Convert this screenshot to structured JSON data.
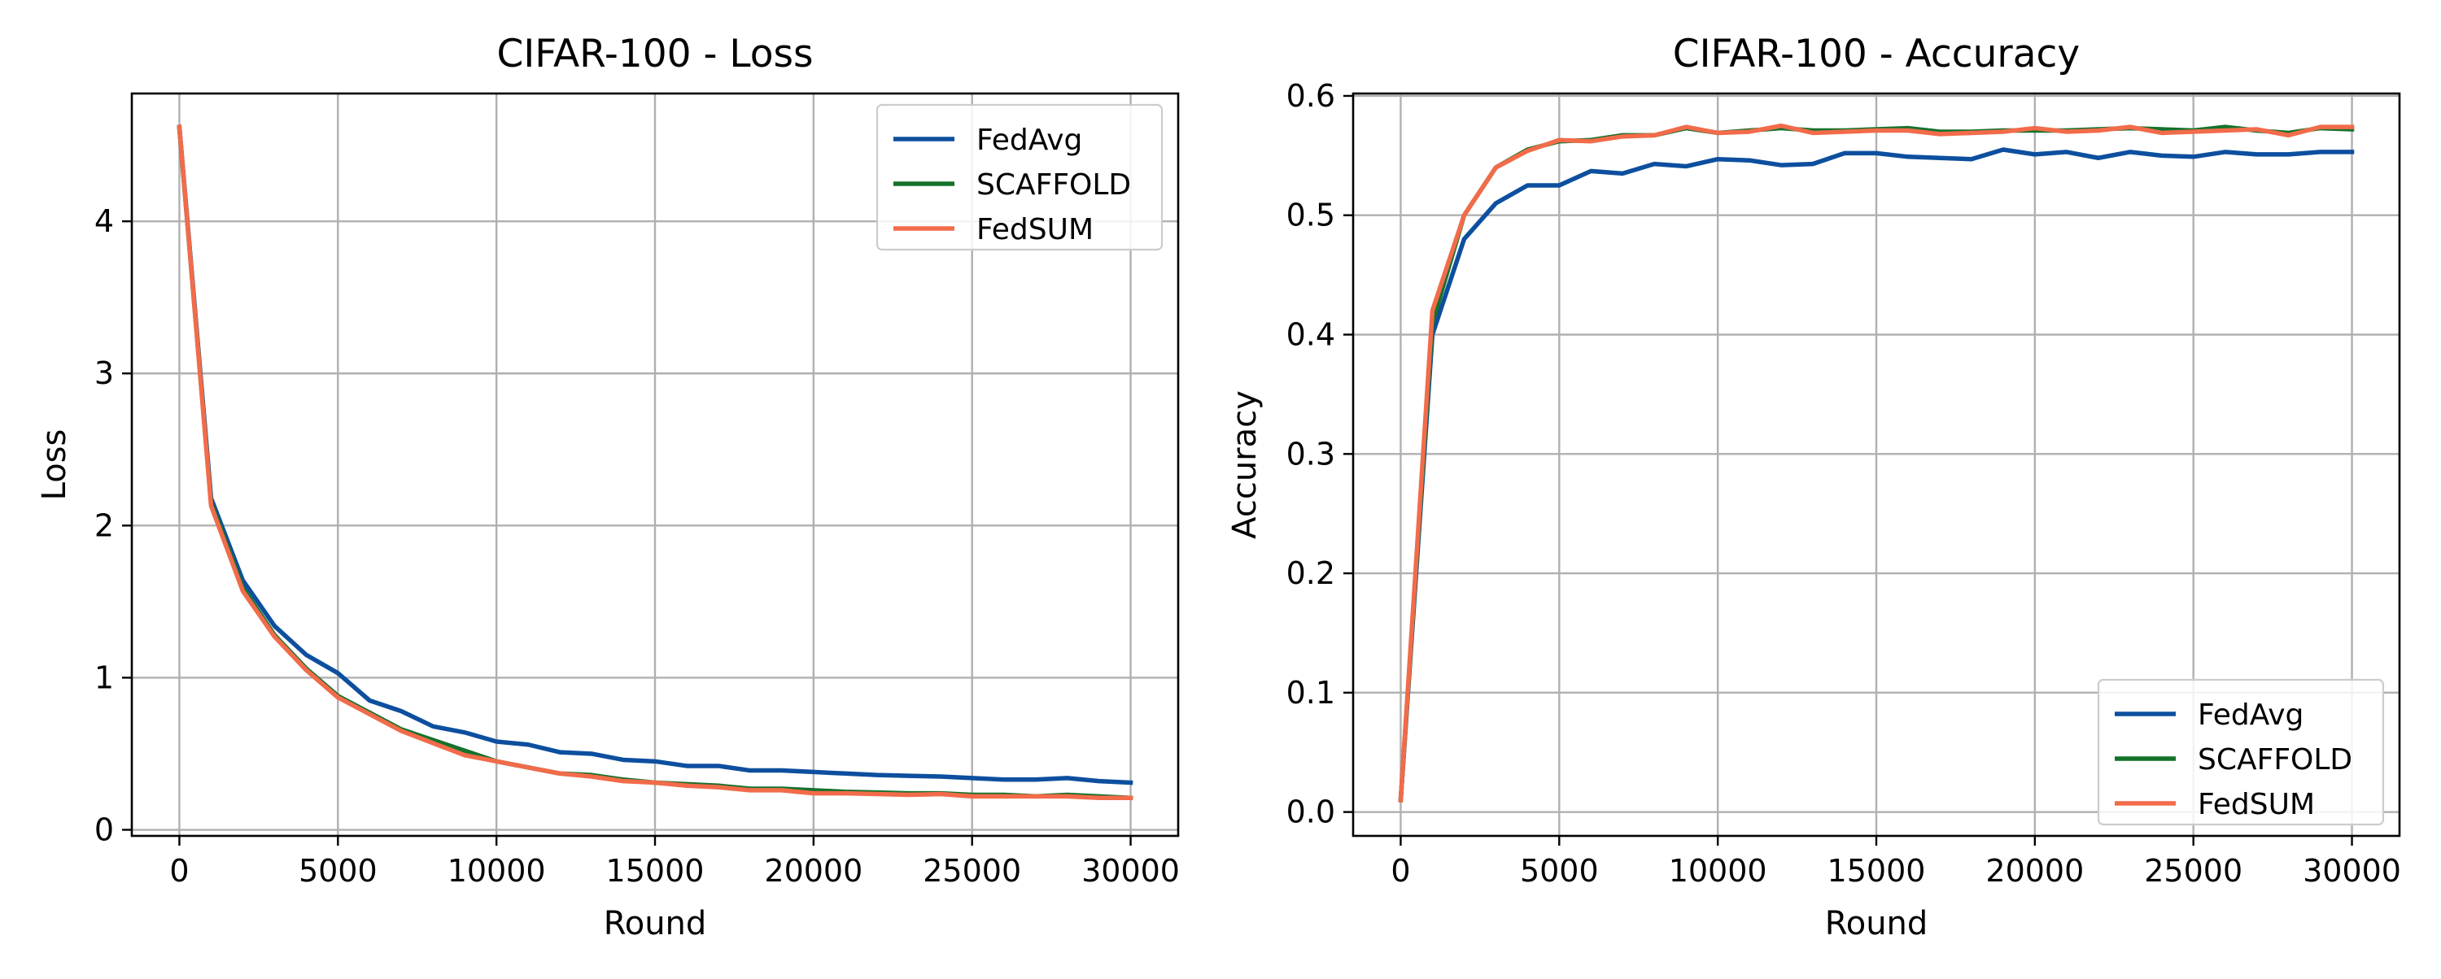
{
  "chart_data": [
    {
      "type": "line",
      "title": "CIFAR-100 - Loss",
      "xlabel": "Round",
      "ylabel": "Loss",
      "xlim": [
        -1500,
        31500
      ],
      "ylim": [
        -0.04,
        4.84
      ],
      "xticks": [
        0,
        5000,
        10000,
        15000,
        20000,
        25000,
        30000
      ],
      "yticks": [
        0,
        1,
        2,
        3,
        4
      ],
      "grid": true,
      "legend_position": "top-right",
      "x": [
        0,
        1000,
        2000,
        3000,
        4000,
        5000,
        6000,
        7000,
        8000,
        9000,
        10000,
        11000,
        12000,
        13000,
        14000,
        15000,
        16000,
        17000,
        18000,
        19000,
        20000,
        21000,
        22000,
        23000,
        24000,
        25000,
        26000,
        27000,
        28000,
        29000,
        30000
      ],
      "series": [
        {
          "name": "FedAvg",
          "color": "#0d4f9e",
          "values": [
            4.62,
            2.18,
            1.64,
            1.34,
            1.15,
            1.03,
            0.85,
            0.78,
            0.68,
            0.64,
            0.58,
            0.56,
            0.51,
            0.5,
            0.46,
            0.45,
            0.42,
            0.42,
            0.39,
            0.39,
            0.38,
            0.37,
            0.36,
            0.355,
            0.35,
            0.34,
            0.33,
            0.33,
            0.34,
            0.32,
            0.31
          ]
        },
        {
          "name": "SCAFFOLD",
          "color": "#14722b",
          "values": [
            4.61,
            2.15,
            1.59,
            1.28,
            1.06,
            0.88,
            0.77,
            0.66,
            0.59,
            0.52,
            0.45,
            0.41,
            0.37,
            0.36,
            0.33,
            0.31,
            0.3,
            0.29,
            0.27,
            0.27,
            0.26,
            0.25,
            0.245,
            0.24,
            0.24,
            0.23,
            0.23,
            0.22,
            0.23,
            0.22,
            0.21
          ]
        },
        {
          "name": "FedSUM",
          "color": "#f26b4a",
          "values": [
            4.62,
            2.13,
            1.57,
            1.27,
            1.05,
            0.87,
            0.76,
            0.65,
            0.57,
            0.49,
            0.45,
            0.41,
            0.37,
            0.35,
            0.32,
            0.31,
            0.29,
            0.28,
            0.26,
            0.26,
            0.24,
            0.24,
            0.235,
            0.23,
            0.235,
            0.22,
            0.22,
            0.22,
            0.22,
            0.21,
            0.21
          ]
        }
      ]
    },
    {
      "type": "line",
      "title": "CIFAR-100 - Accuracy",
      "xlabel": "Round",
      "ylabel": "Accuracy",
      "xlim": [
        -1500,
        31500
      ],
      "ylim": [
        -0.02,
        0.602
      ],
      "xticks": [
        0,
        5000,
        10000,
        15000,
        20000,
        25000,
        30000
      ],
      "yticks": [
        0.0,
        0.1,
        0.2,
        0.3,
        0.4,
        0.5,
        0.6
      ],
      "ytick_labels": [
        "0.0",
        "0.1",
        "0.2",
        "0.3",
        "0.4",
        "0.5",
        "0.6"
      ],
      "grid": true,
      "legend_position": "bottom-right",
      "x": [
        0,
        1000,
        2000,
        3000,
        4000,
        5000,
        6000,
        7000,
        8000,
        9000,
        10000,
        11000,
        12000,
        13000,
        14000,
        15000,
        16000,
        17000,
        18000,
        19000,
        20000,
        21000,
        22000,
        23000,
        24000,
        25000,
        26000,
        27000,
        28000,
        29000,
        30000
      ],
      "series": [
        {
          "name": "FedAvg",
          "color": "#0d4f9e",
          "values": [
            0.01,
            0.4,
            0.48,
            0.51,
            0.525,
            0.525,
            0.537,
            0.535,
            0.543,
            0.541,
            0.547,
            0.546,
            0.542,
            0.543,
            0.552,
            0.552,
            0.549,
            0.548,
            0.547,
            0.555,
            0.551,
            0.553,
            0.548,
            0.553,
            0.55,
            0.549,
            0.553,
            0.551,
            0.551,
            0.553,
            0.553
          ]
        },
        {
          "name": "SCAFFOLD",
          "color": "#14722b",
          "values": [
            0.01,
            0.41,
            0.5,
            0.54,
            0.555,
            0.562,
            0.563,
            0.567,
            0.567,
            0.573,
            0.569,
            0.571,
            0.573,
            0.571,
            0.571,
            0.572,
            0.573,
            0.57,
            0.57,
            0.571,
            0.571,
            0.571,
            0.572,
            0.573,
            0.572,
            0.571,
            0.574,
            0.571,
            0.569,
            0.573,
            0.572
          ]
        },
        {
          "name": "FedSUM",
          "color": "#f26b4a",
          "values": [
            0.01,
            0.42,
            0.5,
            0.54,
            0.554,
            0.563,
            0.562,
            0.566,
            0.567,
            0.574,
            0.569,
            0.57,
            0.575,
            0.569,
            0.57,
            0.571,
            0.571,
            0.568,
            0.569,
            0.57,
            0.573,
            0.57,
            0.571,
            0.574,
            0.569,
            0.57,
            0.571,
            0.572,
            0.567,
            0.574,
            0.574
          ]
        }
      ]
    }
  ]
}
